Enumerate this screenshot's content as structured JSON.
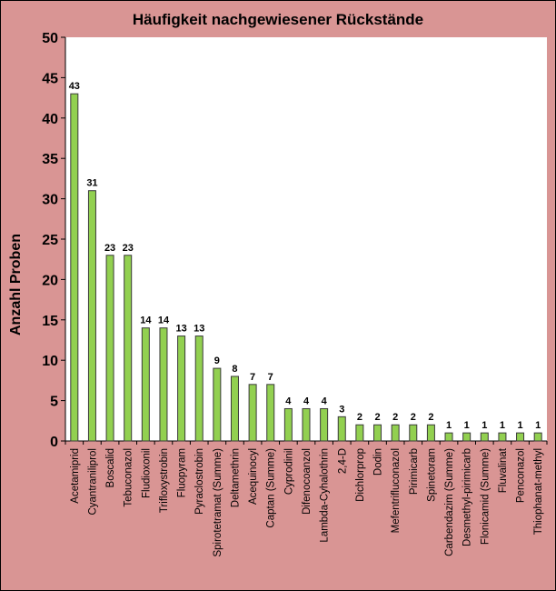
{
  "chart_data": {
    "type": "bar",
    "title": "Häufigkeit nachgewiesener Rückstände",
    "xlabel": "",
    "ylabel": "Anzahl Proben",
    "ylim": [
      0,
      50
    ],
    "yticks": [
      0,
      5,
      10,
      15,
      20,
      25,
      30,
      35,
      40,
      45,
      50
    ],
    "grid": false,
    "legend": "none",
    "data_labels": true,
    "colors": {
      "bar": "#92d050",
      "bar_border": "#3a3a3a",
      "background": "#d99594",
      "plot_area": "#ffffff"
    },
    "categories": [
      "Acetamiprid",
      "Cyantraniliprol",
      "Boscalid",
      "Tebuconazol",
      "Fludioxonil",
      "Trifloxystrobin",
      "Fluopyram",
      "Pyraclostrobin",
      "Spirotetramat (Summe)",
      "Deltamethrin",
      "Acequinocyl",
      "Captan (Summe)",
      "Cyprodinil",
      "Difenocoanzol",
      "Lambda-Cyhalothrin",
      "2,4-D",
      "Dichlorprop",
      "Dodin",
      "Mefentrifluconazol",
      "Pirimicarb",
      "Spinetoram",
      "Carbendazim (Summe)",
      "Desmethyl-pirimicarb",
      "Flonicamid (Summe)",
      "Fluvalinat",
      "Penconazol",
      "Thiophanat-methyl"
    ],
    "values": [
      43,
      31,
      23,
      23,
      14,
      14,
      13,
      13,
      9,
      8,
      7,
      7,
      4,
      4,
      4,
      3,
      2,
      2,
      2,
      2,
      2,
      1,
      1,
      1,
      1,
      1,
      1
    ]
  }
}
